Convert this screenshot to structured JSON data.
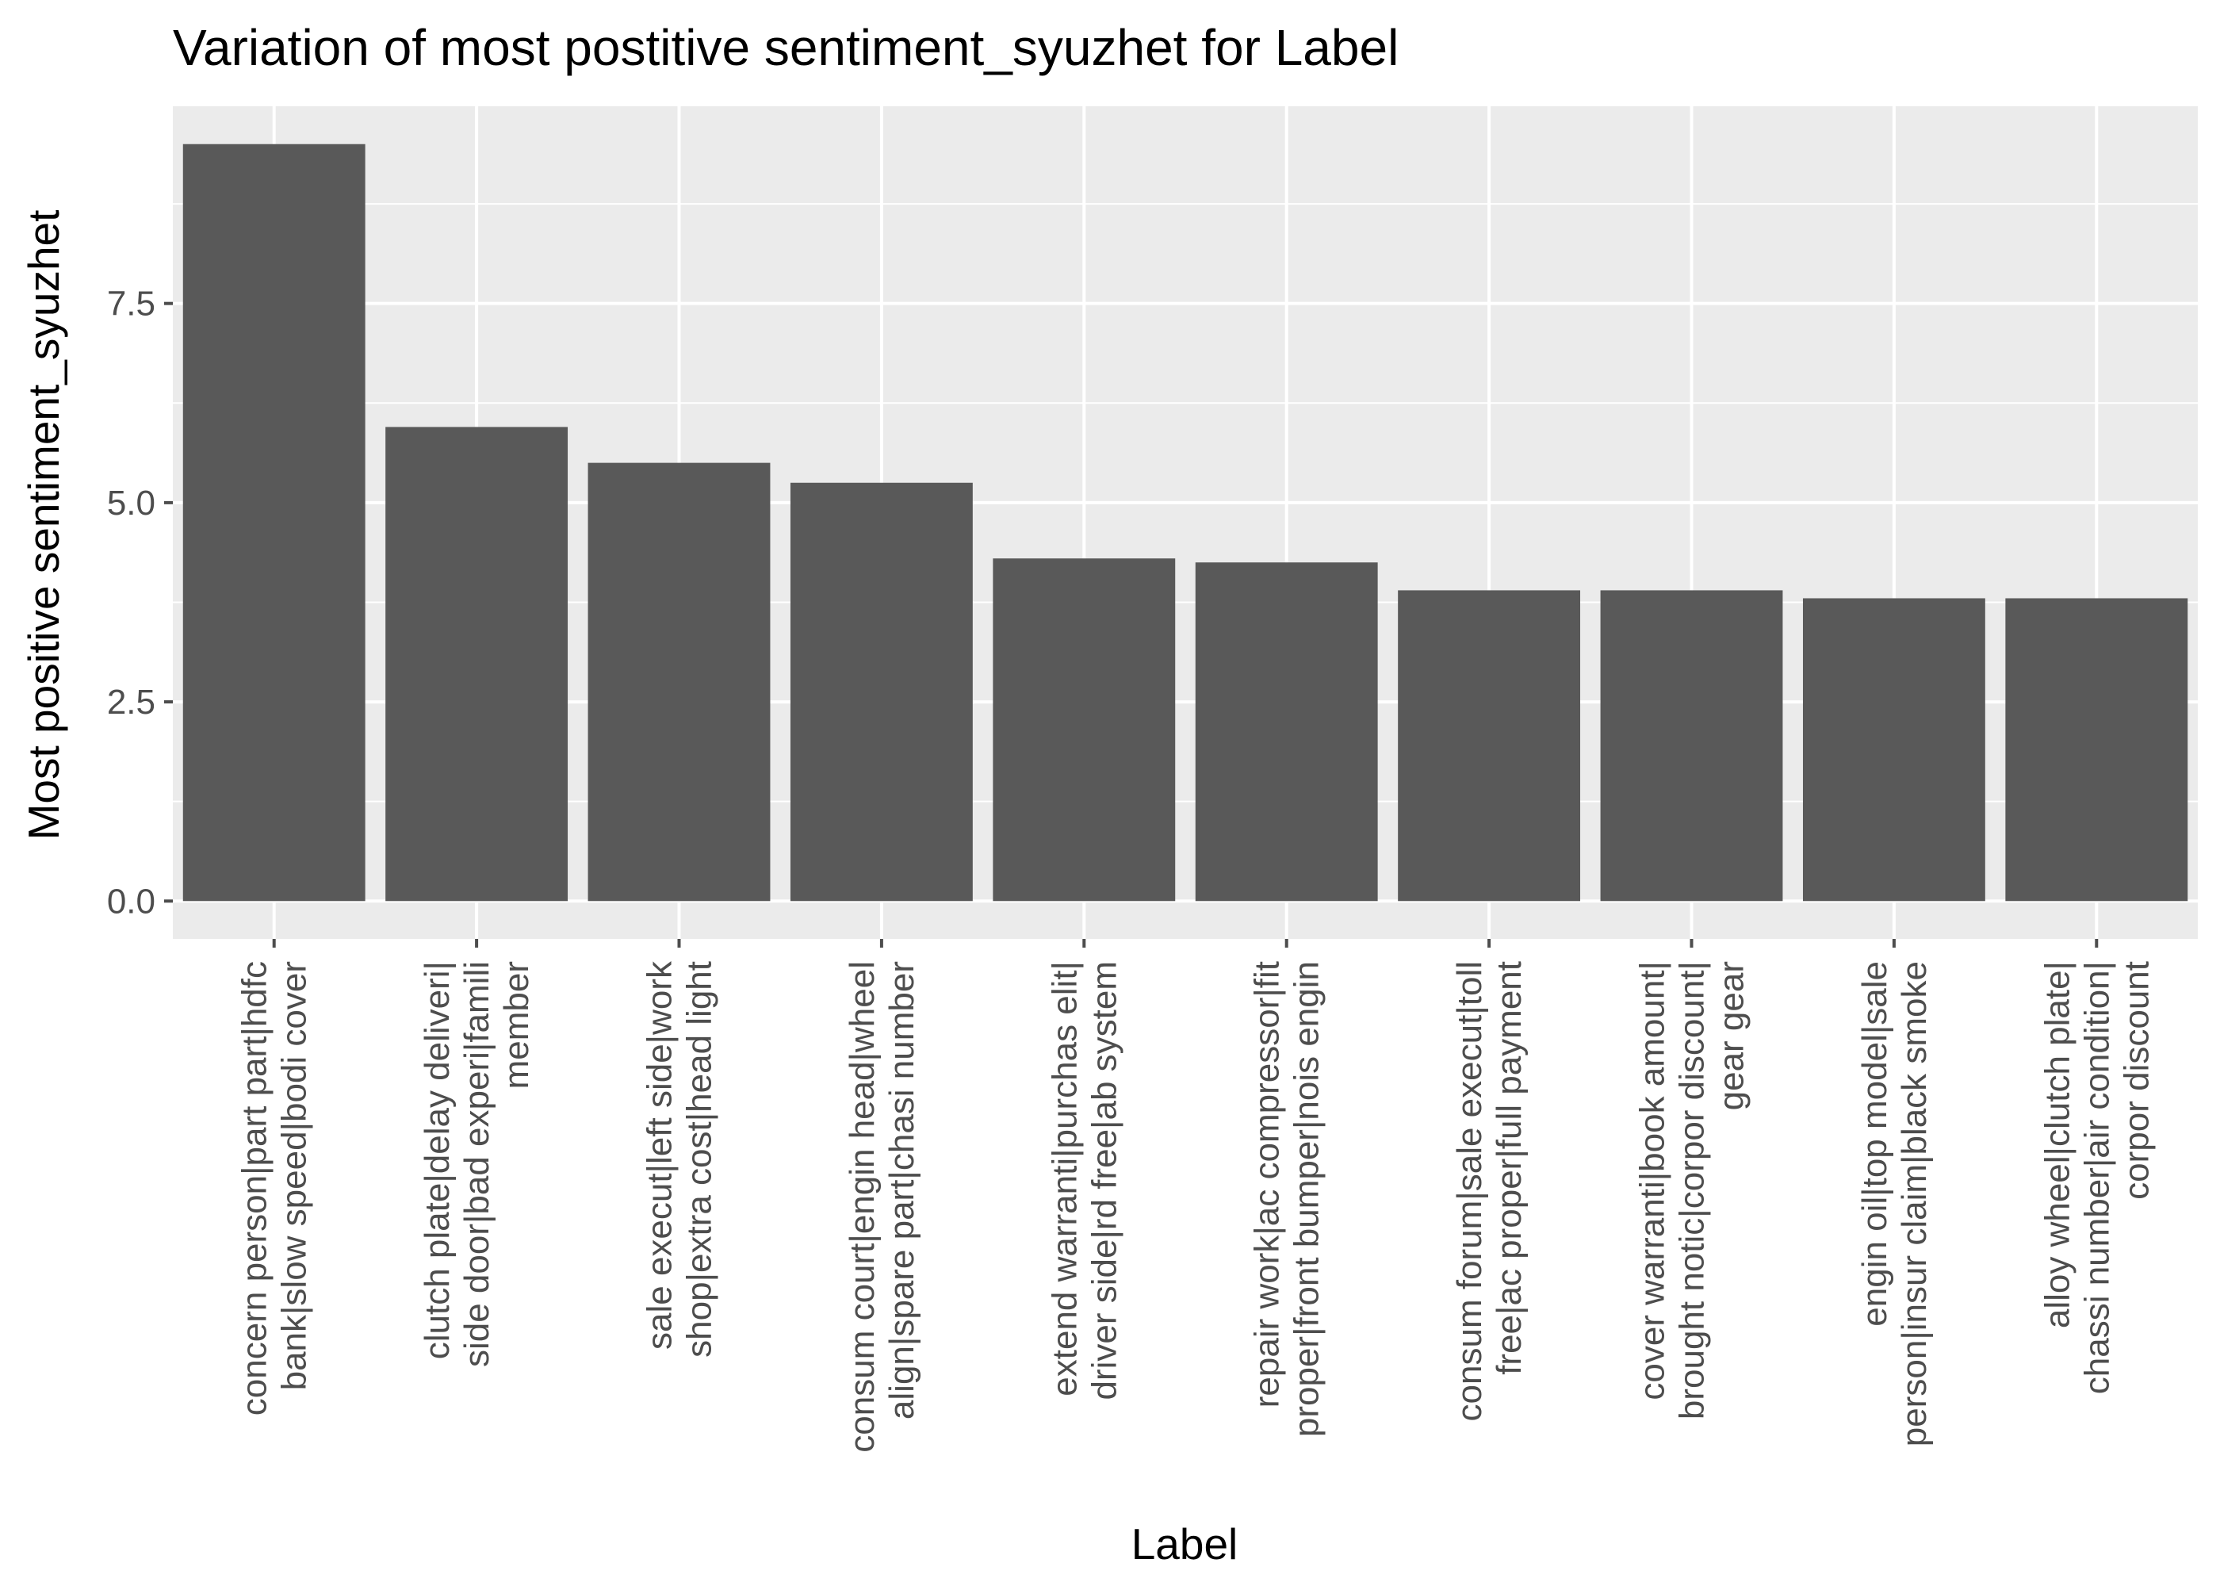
{
  "chart_data": {
    "type": "bar",
    "title": "Variation of most postitive sentiment_syuzhet for Label",
    "xlabel": "Label",
    "ylabel": "Most positive sentiment_syuzhet",
    "ylim": [
      -0.475,
      9.975
    ],
    "yticks": [
      0.0,
      2.5,
      5.0,
      7.5
    ],
    "ytick_labels": [
      "0.0",
      "2.5",
      "5.0",
      "7.5"
    ],
    "grid": true,
    "categories": [
      [
        "concern person|part part|hdfc",
        "bank|slow speed|bodi cover"
      ],
      [
        "clutch plate|delay deliveri|",
        "side door|bad experi|famili",
        "member"
      ],
      [
        "sale execut|left side|work",
        "shop|extra cost|head light"
      ],
      [
        "consum court|engin head|wheel",
        "align|spare part|chasi number"
      ],
      [
        "extend warranti|purchas elit|",
        "driver side|rd free|ab system"
      ],
      [
        "repair work|ac compressor|fit",
        "proper|front bumper|nois engin"
      ],
      [
        "consum forum|sale execut|toll",
        "free|ac proper|full payment"
      ],
      [
        "cover warranti|book amount|",
        "brought notic|corpor discount|",
        "gear gear"
      ],
      [
        "engin oil|top model|sale",
        "person|insur claim|black smoke"
      ],
      [
        "alloy wheel|clutch plate|",
        "chassi number|air condition|",
        "corpor discount"
      ]
    ],
    "values": [
      9.5,
      5.95,
      5.5,
      5.25,
      4.3,
      4.25,
      3.9,
      3.9,
      3.8,
      3.8
    ],
    "colors": {
      "panel": "#ebebeb",
      "grid": "#ffffff",
      "bar": "#595959",
      "tick": "#4d4d4d"
    }
  }
}
